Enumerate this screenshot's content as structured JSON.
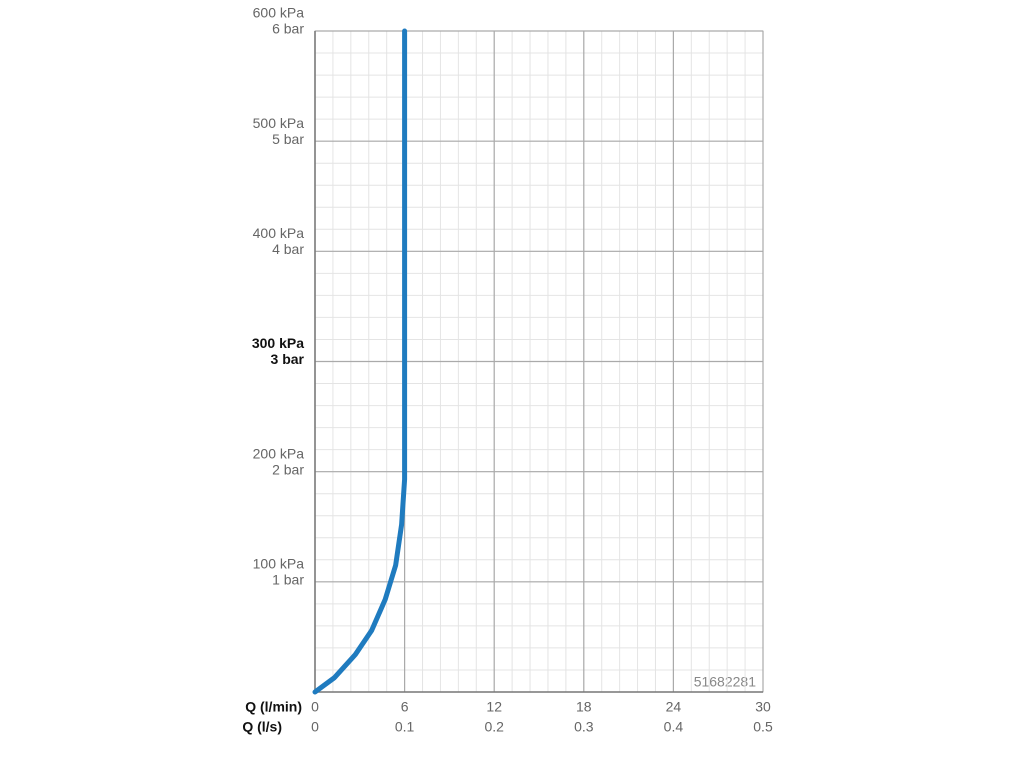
{
  "chart_data": {
    "type": "line",
    "xlabel": "Q (l/min)",
    "x2label": "Q (l/s)",
    "xlim": [
      0,
      30
    ],
    "xticks": [
      0,
      6,
      12,
      18,
      24,
      30
    ],
    "x2lim": [
      0,
      0.5
    ],
    "x2ticks": [
      0,
      0.1,
      0.2,
      0.3,
      0.4,
      0.5
    ],
    "ylim": [
      0,
      600
    ],
    "yticks": [
      {
        "value": 100,
        "label": "100 kPa",
        "bar_label": "1 bar"
      },
      {
        "value": 200,
        "label": "200 kPa",
        "bar_label": "2 bar"
      },
      {
        "value": 300,
        "label": "300 kPa",
        "bar_label": "3 bar",
        "bold": true
      },
      {
        "value": 400,
        "label": "400 kPa",
        "bar_label": "4 bar"
      },
      {
        "value": 500,
        "label": "500 kPa",
        "bar_label": "5 bar"
      },
      {
        "value": 600,
        "label": "600 kPa",
        "bar_label": "6 bar"
      }
    ],
    "grid": true,
    "minor_grid": 5,
    "annotation": "51682281",
    "series": [
      {
        "color": "#1f7bbf",
        "x": [
          0,
          1.3,
          2.7,
          3.8,
          4.7,
          5.4,
          5.8,
          6.0,
          6.0
        ],
        "values": [
          0,
          13,
          34,
          56,
          84,
          115,
          152,
          193,
          600
        ]
      }
    ]
  }
}
